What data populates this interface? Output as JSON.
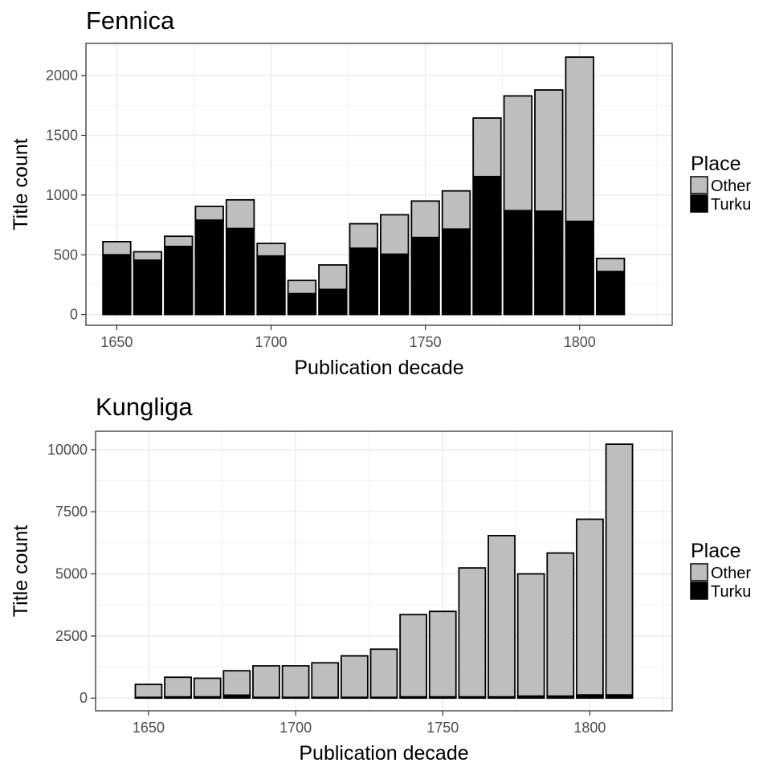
{
  "chart_data": [
    {
      "type": "bar",
      "stacked": true,
      "title": "Fennica",
      "xlabel": "Publication decade",
      "ylabel": "Title count",
      "xlim": [
        1640,
        1830
      ],
      "ylim": [
        -90,
        2270
      ],
      "x_ticks": [
        1650,
        1700,
        1750,
        1800
      ],
      "y_ticks": [
        0,
        500,
        1000,
        1500,
        2000
      ],
      "grid": true,
      "legend": {
        "title": "Place",
        "position": "right",
        "entries": [
          "Other",
          "Turku"
        ]
      },
      "colors": {
        "Other": "#bebebe",
        "Turku": "#000000"
      },
      "x": [
        1650,
        1660,
        1670,
        1680,
        1690,
        1700,
        1710,
        1720,
        1730,
        1740,
        1750,
        1760,
        1770,
        1780,
        1790,
        1800,
        1810
      ],
      "series": [
        {
          "name": "Turku",
          "values": [
            500,
            455,
            570,
            790,
            720,
            490,
            175,
            210,
            555,
            505,
            645,
            715,
            1155,
            870,
            865,
            780,
            360
          ]
        },
        {
          "name": "Other",
          "values": [
            110,
            70,
            85,
            115,
            240,
            105,
            110,
            205,
            205,
            330,
            305,
            320,
            490,
            960,
            1015,
            1375,
            110
          ]
        }
      ]
    },
    {
      "type": "bar",
      "stacked": true,
      "title": "Kungliga",
      "xlabel": "Publication decade",
      "ylabel": "Title count",
      "xlim": [
        1632,
        1828
      ],
      "ylim": [
        -510,
        10740
      ],
      "x_ticks": [
        1650,
        1700,
        1750,
        1800
      ],
      "y_ticks": [
        0,
        2500,
        5000,
        7500,
        10000
      ],
      "grid": true,
      "legend": {
        "title": "Place",
        "position": "right",
        "entries": [
          "Other",
          "Turku"
        ]
      },
      "colors": {
        "Other": "#bebebe",
        "Turku": "#000000"
      },
      "x": [
        1650,
        1660,
        1670,
        1680,
        1690,
        1700,
        1710,
        1720,
        1730,
        1740,
        1750,
        1760,
        1770,
        1780,
        1790,
        1800,
        1810
      ],
      "series": [
        {
          "name": "Turku",
          "values": [
            30,
            50,
            50,
            120,
            30,
            30,
            30,
            30,
            30,
            50,
            50,
            50,
            50,
            80,
            80,
            130,
            130
          ]
        },
        {
          "name": "Other",
          "values": [
            520,
            790,
            750,
            980,
            1270,
            1270,
            1390,
            1670,
            1940,
            3310,
            3440,
            5190,
            6490,
            4920,
            5760,
            7070,
            10090
          ]
        }
      ]
    }
  ]
}
